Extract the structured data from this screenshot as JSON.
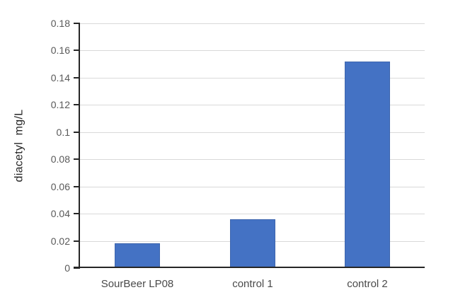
{
  "chart_data": {
    "type": "bar",
    "title": "",
    "xlabel": "",
    "ylabel": "diacetyl  mg/L",
    "categories": [
      "SourBeer LP08",
      "control 1",
      "control 2"
    ],
    "values": [
      0.018,
      0.036,
      0.152
    ],
    "ylim": [
      0,
      0.18
    ],
    "ytick_step": 0.02,
    "yticks": [
      {
        "value": 0,
        "label": "0"
      },
      {
        "value": 0.02,
        "label": "0.02"
      },
      {
        "value": 0.04,
        "label": "0.04"
      },
      {
        "value": 0.06,
        "label": "0.06"
      },
      {
        "value": 0.08,
        "label": "0.08"
      },
      {
        "value": 0.1,
        "label": "0.1"
      },
      {
        "value": 0.12,
        "label": "0.12"
      },
      {
        "value": 0.14,
        "label": "0.14"
      },
      {
        "value": 0.16,
        "label": "0.16"
      },
      {
        "value": 0.18,
        "label": "0.18"
      }
    ],
    "grid": "horizontal",
    "legend": "none",
    "colors": {
      "bar_fill": "#4472C4",
      "bar_border": "#3E66AE",
      "gridline": "#D9D9D9",
      "axis_line": "#262626",
      "y_tick_label": "#595959",
      "x_tick_label": "#4A4A4A",
      "axis_title": "#262626",
      "background": "#FFFFFF"
    }
  }
}
